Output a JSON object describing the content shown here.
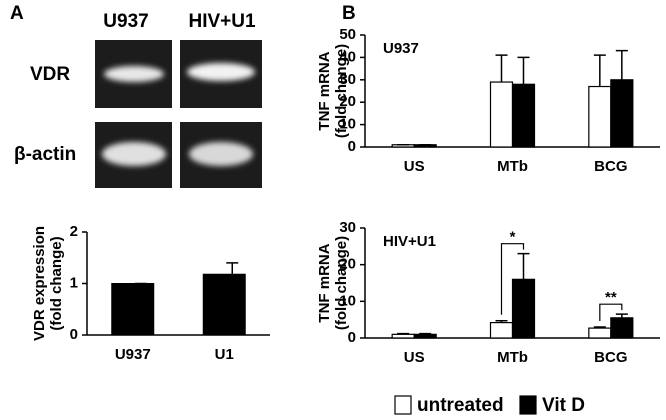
{
  "panels": [
    "A",
    "B"
  ],
  "gel": {
    "columns": [
      "U937",
      "HIV+U1"
    ],
    "rows": [
      "VDR",
      "β-actin"
    ]
  },
  "chart_data": [
    {
      "type": "bar",
      "ylabel": [
        "VDR expression",
        "(fold change)"
      ],
      "categories": [
        "U937",
        "U1"
      ],
      "values": [
        1,
        1.18
      ],
      "errors": [
        0,
        0.22
      ],
      "color": "#000000",
      "ylim": [
        0,
        2
      ],
      "yticks": [
        0,
        1,
        2
      ]
    },
    {
      "type": "grouped_bar",
      "text": "U937",
      "ylabel": [
        "TNF mRNA",
        "(fold change)"
      ],
      "categories": [
        "US",
        "MTb",
        "BCG"
      ],
      "series": [
        {
          "name": "untreated",
          "color": "#ffffff",
          "values": [
            1,
            29,
            27
          ],
          "errors": [
            0,
            12,
            14
          ]
        },
        {
          "name": "Vit D",
          "color": "#000000",
          "values": [
            1,
            28,
            30
          ],
          "errors": [
            0,
            12,
            13
          ]
        }
      ],
      "ylim": [
        0,
        50
      ],
      "yticks": [
        0,
        10,
        20,
        30,
        40,
        50
      ]
    },
    {
      "type": "grouped_bar",
      "text": "HIV+U1",
      "ylabel": [
        "TNF mRNA",
        "(fold change)"
      ],
      "categories": [
        "US",
        "MTb",
        "BCG"
      ],
      "series": [
        {
          "name": "untreated",
          "color": "#ffffff",
          "values": [
            1,
            4.2,
            2.7
          ],
          "errors": [
            0.2,
            0.5,
            0.3
          ]
        },
        {
          "name": "Vit D",
          "color": "#000000",
          "values": [
            1,
            16,
            5.5
          ],
          "errors": [
            0.2,
            7,
            1
          ]
        }
      ],
      "ylim": [
        0,
        30
      ],
      "yticks": [
        0,
        10,
        20,
        30
      ],
      "annotations": [
        {
          "text": "*",
          "category": "MTb"
        },
        {
          "text": "**",
          "category": "BCG"
        }
      ]
    }
  ]
}
